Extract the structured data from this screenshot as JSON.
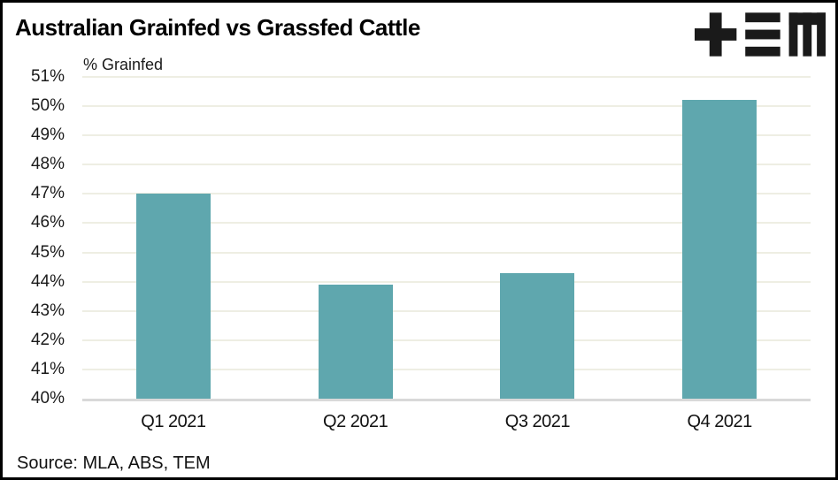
{
  "header": {
    "title": "Australian Grainfed vs Grassfed Cattle",
    "logo_icon": "tem-logo"
  },
  "chart_data": {
    "type": "bar",
    "title": "Australian Grainfed vs Grassfed Cattle",
    "ylabel": "% Grainfed",
    "xlabel": "",
    "categories": [
      "Q1 2021",
      "Q2 2021",
      "Q3 2021",
      "Q4 2021"
    ],
    "values": [
      47.0,
      43.9,
      44.3,
      50.2
    ],
    "ylim": [
      40,
      51
    ],
    "yticks": [
      51,
      50,
      49,
      48,
      47,
      46,
      45,
      44,
      43,
      42,
      41,
      40
    ],
    "ytick_labels": [
      "51%",
      "50%",
      "49%",
      "48%",
      "47%",
      "46%",
      "45%",
      "44%",
      "43%",
      "42%",
      "41%",
      "40%"
    ],
    "grid": true,
    "legend": "none",
    "colors": {
      "bar": "#5FA7AE",
      "gridline": "#EEEEE3",
      "axis_line": "#D9D9D9",
      "title_text": "#000000",
      "tick_text": "#1a1a1a",
      "logo": "#1a1a1a"
    },
    "source": "Source: MLA, ABS, TEM"
  }
}
